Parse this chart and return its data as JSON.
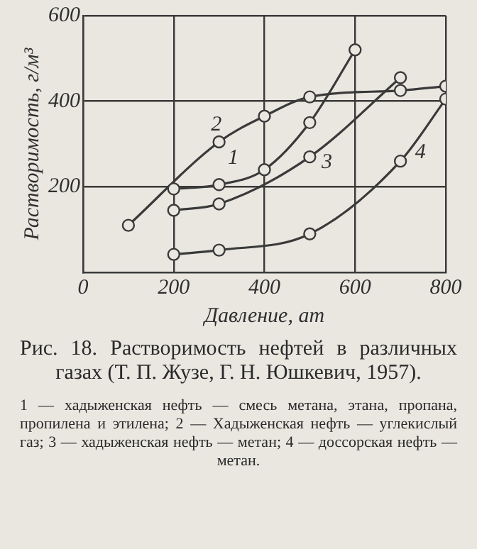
{
  "chart_data": {
    "type": "line",
    "title": "Рис. 18. Растворимость нефтей в различных газах (Т. П. Жузе, Г. Н. Юшкевич, 1957).",
    "xlabel": "Давление, ат",
    "ylabel": "Растворимость, г/м³",
    "xlim": [
      0,
      800
    ],
    "xticks": [
      0,
      200,
      400,
      600,
      800
    ],
    "ylim": [
      0,
      600
    ],
    "yticks": [
      200,
      400,
      600
    ],
    "grid": true,
    "legend": false,
    "marker": "circle",
    "line_style": "solid",
    "series": [
      {
        "name": "1",
        "color": "#3a3a3a",
        "x": [
          200,
          300,
          400,
          500,
          600
        ],
        "values": [
          195,
          205,
          240,
          350,
          520
        ]
      },
      {
        "name": "2",
        "color": "#3a3a3a",
        "x": [
          100,
          300,
          400,
          500,
          700,
          800
        ],
        "values": [
          110,
          305,
          365,
          410,
          425,
          435
        ]
      },
      {
        "name": "3",
        "color": "#3a3a3a",
        "x": [
          200,
          300,
          500,
          700
        ],
        "values": [
          145,
          160,
          270,
          455
        ]
      },
      {
        "name": "4",
        "color": "#3a3a3a",
        "x": [
          200,
          300,
          500,
          700,
          800
        ],
        "values": [
          42,
          52,
          90,
          260,
          405
        ]
      }
    ],
    "annotations": [
      "1 — хадыженская нефть — смесь метана, этана, пропана, пропилена и этилена; 2 — Хадыженская нефть — углекислый газ; 3 — хадыженская нефть — метан; 4 — доссорская нефть — метан."
    ]
  }
}
